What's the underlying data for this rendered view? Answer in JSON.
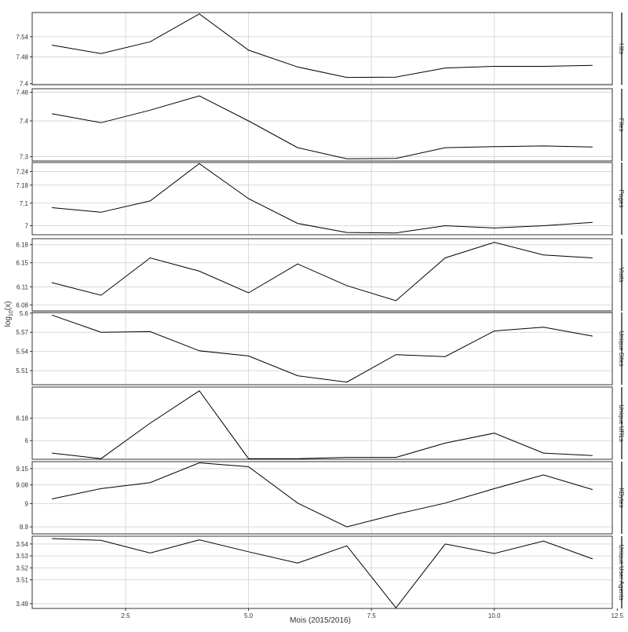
{
  "chart_data": {
    "type": "line",
    "xlabel": "Mois (2015/2016)",
    "ylabel": "log10(x)",
    "ylabel_base": "log",
    "ylabel_sub": "10",
    "ylabel_tail": "(x)",
    "x": [
      1,
      2,
      3,
      4,
      5,
      6,
      7,
      8,
      9,
      10,
      11,
      12
    ],
    "xlim": [
      0.6,
      12.4
    ],
    "xticks": [
      2.5,
      5.0,
      7.5,
      10.0,
      12.5
    ],
    "xtick_labels": [
      "2.5",
      "5.0",
      "7.5",
      "10.0",
      "12.5"
    ],
    "grid": true,
    "colors": {
      "line": "#000000",
      "grid": "#d9d9d9",
      "panel_border": "#000000",
      "frame": "#333333"
    },
    "facets": [
      {
        "label": "Hits",
        "ylim": [
          7.397,
          7.612
        ],
        "yticks": [
          7.4,
          7.48,
          7.54
        ],
        "ytick_labels": [
          "7.4",
          "7.48",
          "7.54"
        ],
        "values": [
          7.515,
          7.49,
          7.525,
          7.608,
          7.5,
          7.45,
          7.419,
          7.42,
          7.447,
          7.452,
          7.452,
          7.455
        ]
      },
      {
        "label": "Files",
        "ylim": [
          7.288,
          7.49
        ],
        "yticks": [
          7.3,
          7.4,
          7.48
        ],
        "ytick_labels": [
          "7.3",
          "7.4",
          "7.48"
        ],
        "values": [
          7.42,
          7.395,
          7.43,
          7.47,
          7.4,
          7.325,
          7.294,
          7.295,
          7.325,
          7.328,
          7.33,
          7.327
        ]
      },
      {
        "label": "Pages",
        "ylim": [
          6.96,
          7.28
        ],
        "yticks": [
          7.0,
          7.1,
          7.18,
          7.24
        ],
        "ytick_labels": [
          "7",
          "7.1",
          "7.18",
          "7.24"
        ],
        "values": [
          7.08,
          7.06,
          7.11,
          7.275,
          7.12,
          7.01,
          6.97,
          6.968,
          7.0,
          6.99,
          7.0,
          7.015
        ]
      },
      {
        "label": "Visits",
        "ylim": [
          6.07,
          6.19
        ],
        "yticks": [
          6.08,
          6.11,
          6.15,
          6.18
        ],
        "ytick_labels": [
          "6.08",
          "6.11",
          "6.15",
          "6.18"
        ],
        "values": [
          6.117,
          6.096,
          6.158,
          6.136,
          6.1,
          6.148,
          6.112,
          6.087,
          6.158,
          6.184,
          6.163,
          6.158
        ]
      },
      {
        "label": "Unique Sites",
        "ylim": [
          5.488,
          5.601
        ],
        "yticks": [
          5.51,
          5.54,
          5.57,
          5.6
        ],
        "ytick_labels": [
          "5.51",
          "5.54",
          "5.57",
          "5.6"
        ],
        "values": [
          5.597,
          5.57,
          5.571,
          5.541,
          5.533,
          5.502,
          5.492,
          5.535,
          5.532,
          5.572,
          5.578,
          5.564
        ]
      },
      {
        "label": "Unique URLs",
        "ylim": [
          5.85,
          6.43
        ],
        "yticks": [
          6.0,
          6.18
        ],
        "ytick_labels": [
          "6",
          "6.18"
        ],
        "values": [
          5.9,
          5.855,
          6.14,
          6.4,
          5.855,
          5.855,
          5.865,
          5.865,
          5.98,
          6.06,
          5.9,
          5.88
        ]
      },
      {
        "label": "KBytes",
        "ylim": [
          8.87,
          9.18
        ],
        "yticks": [
          8.9,
          9.0,
          9.08,
          9.15
        ],
        "ytick_labels": [
          "8.9",
          "9",
          "9.08",
          "9.15"
        ],
        "values": [
          9.02,
          9.064,
          9.09,
          9.175,
          9.158,
          9.002,
          8.9,
          8.954,
          9.002,
          9.064,
          9.123,
          9.06
        ]
      },
      {
        "label": "Unique User Agents",
        "ylim": [
          3.486,
          3.5465
        ],
        "yticks": [
          3.49,
          3.51,
          3.52,
          3.53,
          3.54
        ],
        "ytick_labels": [
          "3.49",
          "3.51",
          "3.52",
          "3.53",
          "3.54"
        ],
        "values": [
          3.5445,
          3.543,
          3.5325,
          3.5435,
          3.5335,
          3.524,
          3.5385,
          3.4865,
          3.54,
          3.532,
          3.5425,
          3.5275
        ]
      }
    ]
  }
}
